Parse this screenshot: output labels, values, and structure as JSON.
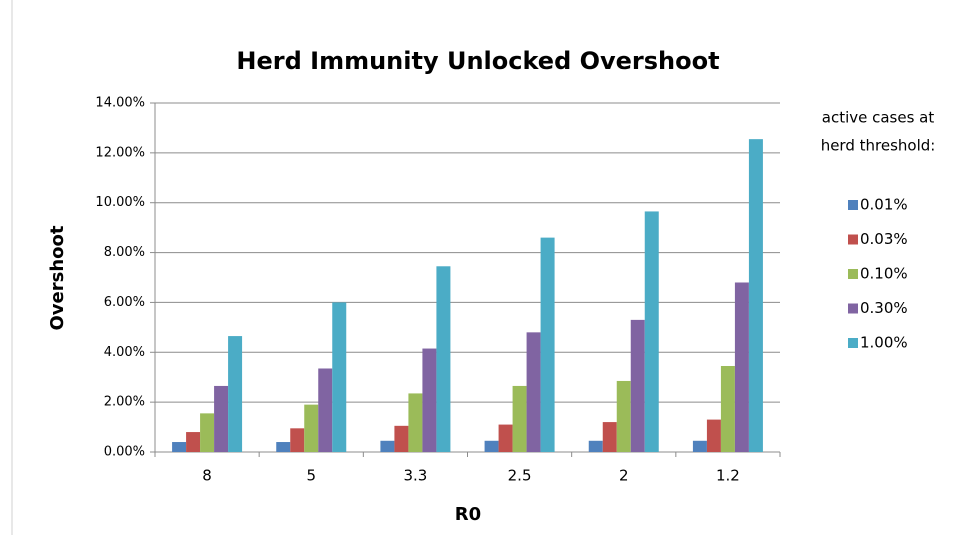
{
  "chart_data": {
    "type": "bar",
    "title": "Herd Immunity Unlocked Overshoot",
    "x_label": "R0",
    "y_label": "Overshoot",
    "legend_title": [
      "active cases at",
      "herd threshold:"
    ],
    "legend_position": "right",
    "grid": true,
    "categories": [
      "8",
      "5",
      "3.3",
      "2.5",
      "2",
      "1.2"
    ],
    "series": [
      {
        "name": "0.01%",
        "color": "#4f81bd",
        "values": [
          0.4,
          0.4,
          0.45,
          0.45,
          0.45,
          0.45
        ]
      },
      {
        "name": "0.03%",
        "color": "#c0504d",
        "values": [
          0.8,
          0.95,
          1.05,
          1.1,
          1.2,
          1.3
        ]
      },
      {
        "name": "0.10%",
        "color": "#9bbb59",
        "values": [
          1.55,
          1.9,
          2.35,
          2.65,
          2.85,
          3.45
        ]
      },
      {
        "name": "0.30%",
        "color": "#8064a2",
        "values": [
          2.65,
          3.35,
          4.15,
          4.8,
          5.3,
          6.8
        ]
      },
      {
        "name": "1.00%",
        "color": "#4bacc6",
        "values": [
          4.65,
          6.0,
          7.45,
          8.6,
          9.65,
          12.55
        ]
      }
    ],
    "ylim": [
      0,
      14
    ],
    "yticks": [
      {
        "value": 0,
        "label": "0.00%"
      },
      {
        "value": 2,
        "label": "2.00%"
      },
      {
        "value": 4,
        "label": "4.00%"
      },
      {
        "value": 6,
        "label": "6.00%"
      },
      {
        "value": 8,
        "label": "8.00%"
      },
      {
        "value": 10,
        "label": "10.00%"
      },
      {
        "value": 12,
        "label": "12.00%"
      },
      {
        "value": 14,
        "label": "14.00%"
      }
    ]
  }
}
